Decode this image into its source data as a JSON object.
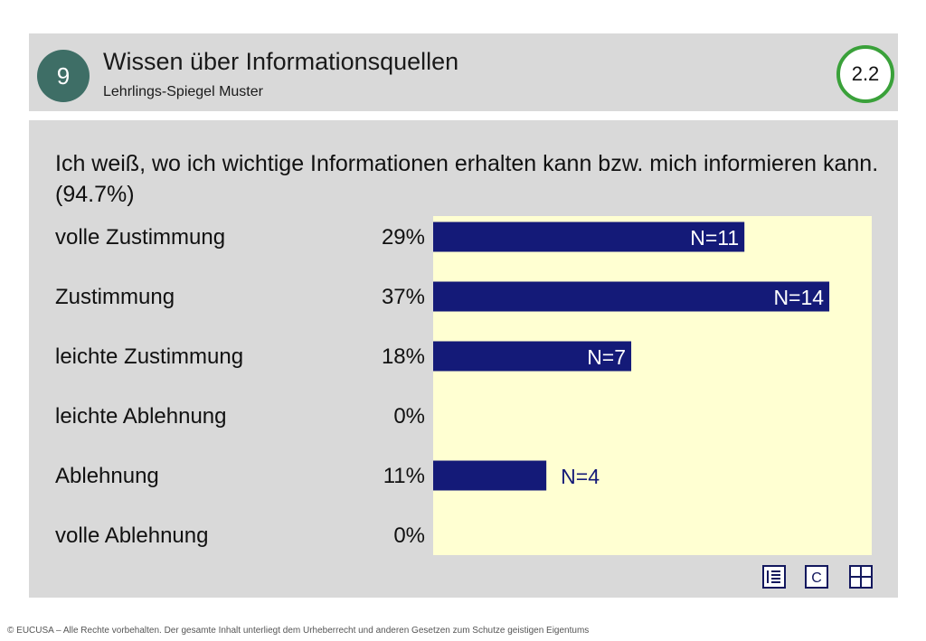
{
  "header": {
    "number": "9",
    "title": "Wissen über Informationsquellen",
    "subtitle": "Lehrlings-Spiegel Muster",
    "version": "2.2"
  },
  "question": "Ich weiß, wo ich wichtige Informationen erhalten kann bzw. mich informieren kann. (94.7%)",
  "chart_data": {
    "type": "bar",
    "orientation": "horizontal",
    "categories": [
      "volle Zustimmung",
      "Zustimmung",
      "leichte Zustimmung",
      "leichte Ablehnung",
      "Ablehnung",
      "volle Ablehnung"
    ],
    "percent_labels": [
      "29%",
      "37%",
      "18%",
      "0%",
      "11%",
      "0%"
    ],
    "values": [
      11,
      14,
      7,
      0,
      4,
      0
    ],
    "count_labels": [
      "N=11",
      "N=14",
      "N=7",
      "",
      "N=4",
      ""
    ],
    "xlim": [
      0,
      15.5
    ],
    "bar_color": "#141a78",
    "background_color": "#ffffd2"
  },
  "toolbar": {
    "icons": [
      "list-icon",
      "c-icon",
      "grid-icon"
    ],
    "c_label": "C"
  },
  "footer": "© EUCUSA – Alle Rechte vorbehalten. Der gesamte Inhalt unterliegt dem Urheberrecht und anderen Gesetzen zum Schutze geistigen Eigentums"
}
